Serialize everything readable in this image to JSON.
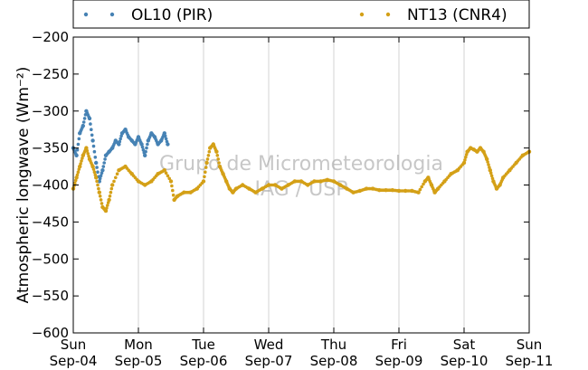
{
  "chart_data": {
    "type": "scatter",
    "title": "",
    "xlabel": "",
    "ylabel": "Atmospheric longwave",
    "ylabel_unit": "(Wm⁻²)",
    "ylim": [
      -600,
      -200
    ],
    "yticks": [
      "−200",
      "−250",
      "−300",
      "−350",
      "−400",
      "−450",
      "−500",
      "−550",
      "−600"
    ],
    "xlim_days": [
      0,
      7
    ],
    "xticks": [
      {
        "day": "Sun",
        "date": "Sep-04"
      },
      {
        "day": "Mon",
        "date": "Sep-05"
      },
      {
        "day": "Tue",
        "date": "Sep-06"
      },
      {
        "day": "Wed",
        "date": "Sep-07"
      },
      {
        "day": "Thu",
        "date": "Sep-08"
      },
      {
        "day": "Fri",
        "date": "Sep-09"
      },
      {
        "day": "Sat",
        "date": "Sep-10"
      },
      {
        "day": "Sun",
        "date": "Sep-11"
      }
    ],
    "grid": true,
    "legend_position": "top",
    "series": [
      {
        "name": "OL10 (PIR)",
        "color": "#4682b4",
        "points": [
          [
            0.0,
            -350
          ],
          [
            0.05,
            -360
          ],
          [
            0.1,
            -330
          ],
          [
            0.15,
            -320
          ],
          [
            0.2,
            -300
          ],
          [
            0.25,
            -310
          ],
          [
            0.3,
            -340
          ],
          [
            0.35,
            -370
          ],
          [
            0.4,
            -395
          ],
          [
            0.45,
            -380
          ],
          [
            0.5,
            -360
          ],
          [
            0.55,
            -355
          ],
          [
            0.6,
            -350
          ],
          [
            0.65,
            -340
          ],
          [
            0.7,
            -345
          ],
          [
            0.75,
            -330
          ],
          [
            0.8,
            -325
          ],
          [
            0.85,
            -335
          ],
          [
            0.9,
            -340
          ],
          [
            0.95,
            -345
          ],
          [
            1.0,
            -335
          ],
          [
            1.05,
            -345
          ],
          [
            1.1,
            -360
          ],
          [
            1.15,
            -340
          ],
          [
            1.2,
            -330
          ],
          [
            1.25,
            -335
          ],
          [
            1.3,
            -345
          ],
          [
            1.35,
            -340
          ],
          [
            1.4,
            -330
          ],
          [
            1.45,
            -345
          ]
        ]
      },
      {
        "name": "NT13 (CNR4)",
        "color": "#d4a017",
        "points": [
          [
            0.0,
            -405
          ],
          [
            0.05,
            -390
          ],
          [
            0.1,
            -375
          ],
          [
            0.15,
            -360
          ],
          [
            0.2,
            -350
          ],
          [
            0.25,
            -365
          ],
          [
            0.3,
            -375
          ],
          [
            0.35,
            -390
          ],
          [
            0.4,
            -410
          ],
          [
            0.45,
            -430
          ],
          [
            0.5,
            -435
          ],
          [
            0.55,
            -420
          ],
          [
            0.6,
            -400
          ],
          [
            0.7,
            -380
          ],
          [
            0.8,
            -375
          ],
          [
            0.9,
            -385
          ],
          [
            1.0,
            -395
          ],
          [
            1.1,
            -400
          ],
          [
            1.2,
            -395
          ],
          [
            1.3,
            -385
          ],
          [
            1.4,
            -380
          ],
          [
            1.5,
            -395
          ],
          [
            1.55,
            -420
          ],
          [
            1.6,
            -415
          ],
          [
            1.7,
            -410
          ],
          [
            1.8,
            -410
          ],
          [
            1.9,
            -405
          ],
          [
            2.0,
            -395
          ],
          [
            2.05,
            -370
          ],
          [
            2.1,
            -350
          ],
          [
            2.15,
            -345
          ],
          [
            2.2,
            -355
          ],
          [
            2.25,
            -375
          ],
          [
            2.3,
            -385
          ],
          [
            2.35,
            -395
          ],
          [
            2.4,
            -405
          ],
          [
            2.45,
            -410
          ],
          [
            2.5,
            -405
          ],
          [
            2.6,
            -400
          ],
          [
            2.7,
            -405
          ],
          [
            2.8,
            -410
          ],
          [
            2.9,
            -405
          ],
          [
            3.0,
            -400
          ],
          [
            3.1,
            -400
          ],
          [
            3.2,
            -405
          ],
          [
            3.3,
            -400
          ],
          [
            3.4,
            -395
          ],
          [
            3.5,
            -395
          ],
          [
            3.6,
            -400
          ],
          [
            3.7,
            -395
          ],
          [
            3.8,
            -395
          ],
          [
            3.9,
            -393
          ],
          [
            4.0,
            -395
          ],
          [
            4.1,
            -400
          ],
          [
            4.2,
            -405
          ],
          [
            4.3,
            -410
          ],
          [
            4.4,
            -408
          ],
          [
            4.5,
            -405
          ],
          [
            4.6,
            -405
          ],
          [
            4.7,
            -407
          ],
          [
            4.8,
            -407
          ],
          [
            4.9,
            -407
          ],
          [
            5.0,
            -408
          ],
          [
            5.1,
            -408
          ],
          [
            5.2,
            -408
          ],
          [
            5.3,
            -410
          ],
          [
            5.4,
            -395
          ],
          [
            5.45,
            -390
          ],
          [
            5.5,
            -400
          ],
          [
            5.55,
            -410
          ],
          [
            5.6,
            -405
          ],
          [
            5.7,
            -395
          ],
          [
            5.8,
            -385
          ],
          [
            5.9,
            -380
          ],
          [
            6.0,
            -370
          ],
          [
            6.05,
            -355
          ],
          [
            6.1,
            -350
          ],
          [
            6.15,
            -352
          ],
          [
            6.2,
            -355
          ],
          [
            6.25,
            -350
          ],
          [
            6.3,
            -355
          ],
          [
            6.35,
            -365
          ],
          [
            6.4,
            -380
          ],
          [
            6.45,
            -395
          ],
          [
            6.5,
            -405
          ],
          [
            6.55,
            -400
          ],
          [
            6.6,
            -390
          ],
          [
            6.7,
            -380
          ],
          [
            6.8,
            -370
          ],
          [
            6.9,
            -360
          ],
          [
            7.0,
            -355
          ]
        ]
      }
    ],
    "watermark": [
      "Grupo de Micrometeorologia",
      "IAG / USP"
    ]
  }
}
